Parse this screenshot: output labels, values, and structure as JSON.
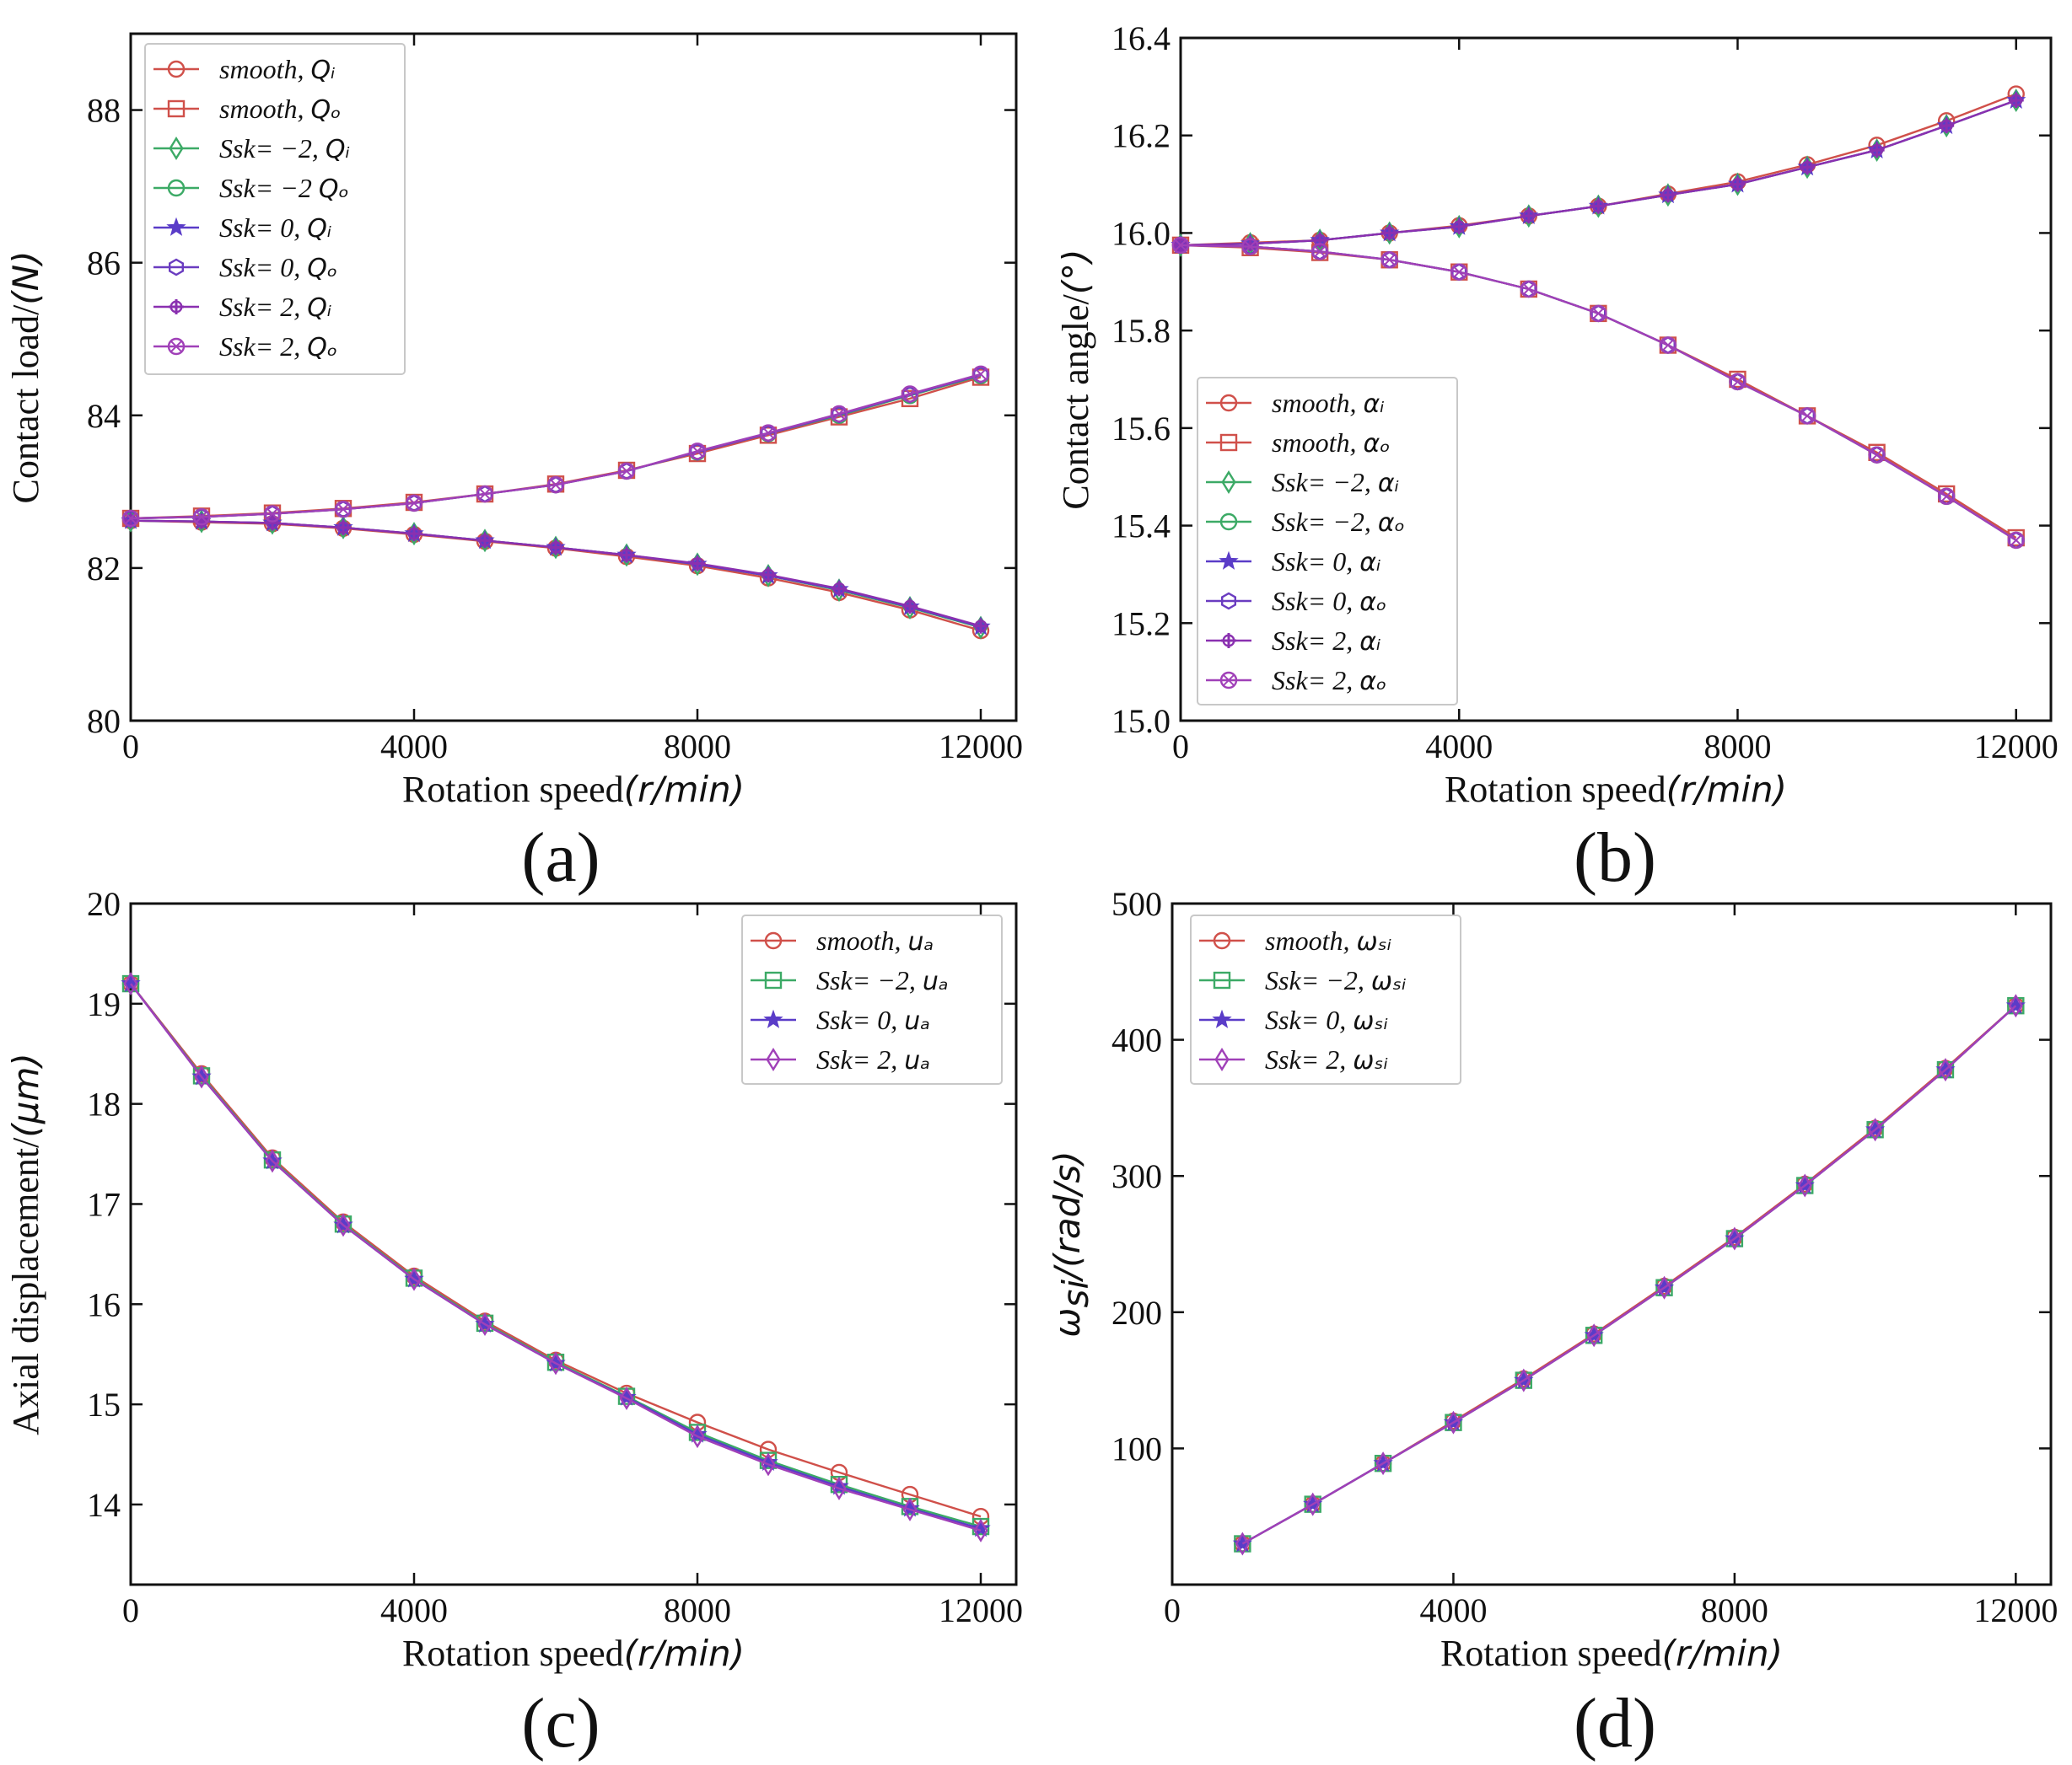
{
  "chart_data": [
    {
      "id": "a",
      "type": "line",
      "panel_label": "(a)",
      "xlabel": "Rotation speed",
      "xlabel_unit": "(r/min)",
      "ylabel": "Contact load/",
      "ylabel_unit": "(N)",
      "xlim": [
        0,
        12500
      ],
      "ylim": [
        80,
        89
      ],
      "xticks": [
        0,
        4000,
        8000,
        12000
      ],
      "yticks": [
        80,
        82,
        84,
        86,
        88
      ],
      "ytick_decimals": 0,
      "legend_position": "top-left",
      "x": [
        0,
        1000,
        2000,
        3000,
        4000,
        5000,
        6000,
        7000,
        8000,
        9000,
        10000,
        11000,
        12000
      ],
      "series": [
        {
          "name": "smooth, Qi",
          "legend": "smooth,",
          "legend_sub": "Qᵢ",
          "color": "#d0504a",
          "marker": "circle",
          "values": [
            82.62,
            82.6,
            82.58,
            82.52,
            82.44,
            82.35,
            82.26,
            82.15,
            82.03,
            81.87,
            81.68,
            81.45,
            81.18
          ]
        },
        {
          "name": "smooth, Qo",
          "legend": "smooth,",
          "legend_sub": "Qₒ",
          "color": "#d0504a",
          "marker": "square",
          "values": [
            82.65,
            82.68,
            82.72,
            82.78,
            82.86,
            82.97,
            83.1,
            83.28,
            83.5,
            83.74,
            83.98,
            84.22,
            84.5
          ]
        },
        {
          "name": "Ssk=-2, Qi",
          "legend": "Ssk= −2,",
          "legend_sub": "Qᵢ",
          "color": "#3caa66",
          "marker": "diamond",
          "values": [
            82.62,
            82.61,
            82.59,
            82.53,
            82.45,
            82.36,
            82.27,
            82.17,
            82.05,
            81.9,
            81.71,
            81.48,
            81.22
          ]
        },
        {
          "name": "Ssk=-2, Qo",
          "legend": "Ssk= −2",
          "legend_sub": "Qₒ",
          "color": "#3caa66",
          "marker": "circle",
          "values": [
            82.65,
            82.67,
            82.71,
            82.77,
            82.85,
            82.97,
            83.09,
            83.27,
            83.52,
            83.76,
            84.0,
            84.26,
            84.52
          ]
        },
        {
          "name": "Ssk=0, Qi",
          "legend": "Ssk= 0,",
          "legend_sub": "Qᵢ",
          "color": "#5a3cc8",
          "marker": "star",
          "values": [
            82.62,
            82.61,
            82.59,
            82.53,
            82.45,
            82.36,
            82.27,
            82.17,
            82.05,
            81.9,
            81.72,
            81.49,
            81.23
          ]
        },
        {
          "name": "Ssk=0, Qo",
          "legend": "Ssk= 0,",
          "legend_sub": "Qₒ",
          "color": "#6a3cc0",
          "marker": "hexagon",
          "values": [
            82.65,
            82.67,
            82.71,
            82.77,
            82.85,
            82.97,
            83.09,
            83.27,
            83.52,
            83.76,
            84.01,
            84.27,
            84.53
          ]
        },
        {
          "name": "Ssk=2, Qi",
          "legend": "Ssk= 2,",
          "legend_sub": "Qᵢ",
          "color": "#8a30b0",
          "marker": "plus",
          "values": [
            82.62,
            82.61,
            82.59,
            82.53,
            82.45,
            82.36,
            82.27,
            82.17,
            82.06,
            81.91,
            81.73,
            81.5,
            81.24
          ]
        },
        {
          "name": "Ssk=2, Qo",
          "legend": "Ssk= 2,",
          "legend_sub": "Qₒ",
          "color": "#a040b8",
          "marker": "circlex",
          "values": [
            82.65,
            82.67,
            82.71,
            82.77,
            82.85,
            82.97,
            83.09,
            83.27,
            83.53,
            83.77,
            84.02,
            84.28,
            84.54
          ]
        }
      ]
    },
    {
      "id": "b",
      "type": "line",
      "panel_label": "(b)",
      "xlabel": "Rotation speed",
      "xlabel_unit": "(r/min)",
      "ylabel": "Contact angle/",
      "ylabel_unit": "(°)",
      "xlim": [
        0,
        12500
      ],
      "ylim": [
        15.0,
        16.4
      ],
      "xticks": [
        0,
        4000,
        8000,
        12000
      ],
      "yticks": [
        15.0,
        15.2,
        15.4,
        15.6,
        15.8,
        16.0,
        16.2,
        16.4
      ],
      "ytick_decimals": 1,
      "legend_position": "lower-left",
      "x": [
        0,
        1000,
        2000,
        3000,
        4000,
        5000,
        6000,
        7000,
        8000,
        9000,
        10000,
        11000,
        12000
      ],
      "series": [
        {
          "name": "smooth, αi",
          "legend": "smooth,",
          "legend_sub": "αᵢ",
          "color": "#d0504a",
          "marker": "circle",
          "values": [
            15.975,
            15.98,
            15.985,
            16.0,
            16.015,
            16.035,
            16.055,
            16.08,
            16.105,
            16.14,
            16.18,
            16.23,
            16.285
          ]
        },
        {
          "name": "smooth, αo",
          "legend": "smooth,",
          "legend_sub": "αₒ",
          "color": "#d0504a",
          "marker": "square",
          "values": [
            15.975,
            15.97,
            15.96,
            15.945,
            15.92,
            15.885,
            15.835,
            15.77,
            15.7,
            15.625,
            15.55,
            15.465,
            15.375
          ]
        },
        {
          "name": "Ssk=-2, αi",
          "legend": "Ssk= −2,",
          "legend_sub": "αᵢ",
          "color": "#3caa66",
          "marker": "diamond",
          "values": [
            15.975,
            15.978,
            15.985,
            16.0,
            16.013,
            16.035,
            16.055,
            16.078,
            16.1,
            16.135,
            16.17,
            16.22,
            16.272
          ]
        },
        {
          "name": "Ssk=-2, αo",
          "legend": "Ssk= −2,",
          "legend_sub": "αₒ",
          "color": "#3caa66",
          "marker": "circle",
          "values": [
            15.975,
            15.972,
            15.962,
            15.945,
            15.92,
            15.885,
            15.835,
            15.77,
            15.695,
            15.625,
            15.545,
            15.46,
            15.37
          ]
        },
        {
          "name": "Ssk=0, αi",
          "legend": "Ssk= 0,",
          "legend_sub": "αᵢ",
          "color": "#5a3cc8",
          "marker": "star",
          "values": [
            15.975,
            15.978,
            15.985,
            16.0,
            16.013,
            16.035,
            16.055,
            16.078,
            16.1,
            16.135,
            16.17,
            16.22,
            16.272
          ]
        },
        {
          "name": "Ssk=0, αo",
          "legend": "Ssk= 0,",
          "legend_sub": "αₒ",
          "color": "#6a3cc0",
          "marker": "hexagon",
          "values": [
            15.975,
            15.972,
            15.962,
            15.945,
            15.92,
            15.885,
            15.835,
            15.77,
            15.695,
            15.625,
            15.545,
            15.46,
            15.37
          ]
        },
        {
          "name": "Ssk=2, αi",
          "legend": "Ssk= 2,",
          "legend_sub": "αᵢ",
          "color": "#8a30b0",
          "marker": "plus",
          "values": [
            15.975,
            15.978,
            15.985,
            16.0,
            16.013,
            16.035,
            16.055,
            16.078,
            16.1,
            16.135,
            16.17,
            16.22,
            16.272
          ]
        },
        {
          "name": "Ssk=2, αo",
          "legend": "Ssk= 2,",
          "legend_sub": "αₒ",
          "color": "#a040b8",
          "marker": "circlex",
          "values": [
            15.975,
            15.972,
            15.962,
            15.945,
            15.92,
            15.885,
            15.835,
            15.77,
            15.695,
            15.625,
            15.545,
            15.46,
            15.37
          ]
        }
      ]
    },
    {
      "id": "c",
      "type": "line",
      "panel_label": "(c)",
      "xlabel": "Rotation speed",
      "xlabel_unit": "(r/min)",
      "ylabel": "Axial displacement/",
      "ylabel_unit": "(μm)",
      "xlim": [
        0,
        12500
      ],
      "ylim": [
        13.2,
        20
      ],
      "xticks": [
        0,
        4000,
        8000,
        12000
      ],
      "yticks": [
        14,
        15,
        16,
        17,
        18,
        19,
        20
      ],
      "ytick_decimals": 0,
      "legend_position": "top-right",
      "x": [
        0,
        1000,
        2000,
        3000,
        4000,
        5000,
        6000,
        7000,
        8000,
        9000,
        10000,
        11000,
        12000
      ],
      "series": [
        {
          "name": "smooth, ua",
          "legend": "smooth,",
          "legend_sub": "uₐ",
          "color": "#d0504a",
          "marker": "circle",
          "values": [
            19.2,
            18.3,
            17.46,
            16.82,
            16.28,
            15.83,
            15.44,
            15.11,
            14.82,
            14.55,
            14.32,
            14.1,
            13.88
          ]
        },
        {
          "name": "Ssk=-2, ua",
          "legend": "Ssk= −2,",
          "legend_sub": "uₐ",
          "color": "#3caa66",
          "marker": "square",
          "values": [
            19.2,
            18.28,
            17.44,
            16.8,
            16.26,
            15.81,
            15.42,
            15.08,
            14.72,
            14.44,
            14.2,
            13.98,
            13.78
          ]
        },
        {
          "name": "Ssk=0, ua",
          "legend": "Ssk= 0,",
          "legend_sub": "uₐ",
          "color": "#5a3cc8",
          "marker": "star",
          "values": [
            19.2,
            18.27,
            17.43,
            16.79,
            16.25,
            15.8,
            15.41,
            15.07,
            14.7,
            14.42,
            14.18,
            13.96,
            13.76
          ]
        },
        {
          "name": "Ssk=2, ua",
          "legend": "Ssk= 2,",
          "legend_sub": "uₐ",
          "color": "#a040b8",
          "marker": "diamond",
          "values": [
            19.2,
            18.27,
            17.43,
            16.79,
            16.25,
            15.8,
            15.41,
            15.06,
            14.68,
            14.4,
            14.16,
            13.95,
            13.74
          ]
        }
      ]
    },
    {
      "id": "d",
      "type": "line",
      "panel_label": "(d)",
      "xlabel": "Rotation speed",
      "xlabel_unit": "(r/min)",
      "ylabel": "ω",
      "ylabel_sub": "si",
      "ylabel_unit": "/(rad/s)",
      "xlim": [
        0,
        12500
      ],
      "ylim": [
        0,
        500
      ],
      "xticks": [
        0,
        4000,
        8000,
        12000
      ],
      "yticks": [
        100,
        200,
        300,
        400,
        500
      ],
      "ytick_decimals": 0,
      "legend_position": "top-left",
      "x": [
        1000,
        2000,
        3000,
        4000,
        5000,
        6000,
        7000,
        8000,
        9000,
        10000,
        11000,
        12000
      ],
      "series": [
        {
          "name": "smooth, ωsi",
          "legend": "smooth,",
          "legend_sub": "ωₛᵢ",
          "color": "#d0504a",
          "marker": "circle",
          "values": [
            30,
            59,
            89,
            120,
            151,
            184,
            219,
            255,
            294,
            335,
            379,
            425
          ]
        },
        {
          "name": "Ssk=-2, ωsi",
          "legend": "Ssk= −2,",
          "legend_sub": "ωₛᵢ",
          "color": "#3caa66",
          "marker": "square",
          "values": [
            30,
            59,
            89,
            119,
            150,
            183,
            218,
            254,
            293,
            334,
            378,
            425
          ]
        },
        {
          "name": "Ssk=0, ωsi",
          "legend": "Ssk= 0,",
          "legend_sub": "ωₛᵢ",
          "color": "#5a3cc8",
          "marker": "star",
          "values": [
            30,
            59,
            89,
            119,
            150,
            183,
            218,
            254,
            293,
            334,
            378,
            425
          ]
        },
        {
          "name": "Ssk=2, ωsi",
          "legend": "Ssk= 2,",
          "legend_sub": "ωₛᵢ",
          "color": "#a040b8",
          "marker": "diamond",
          "values": [
            30,
            59,
            89,
            119,
            150,
            183,
            218,
            254,
            293,
            334,
            378,
            425
          ]
        }
      ]
    }
  ]
}
